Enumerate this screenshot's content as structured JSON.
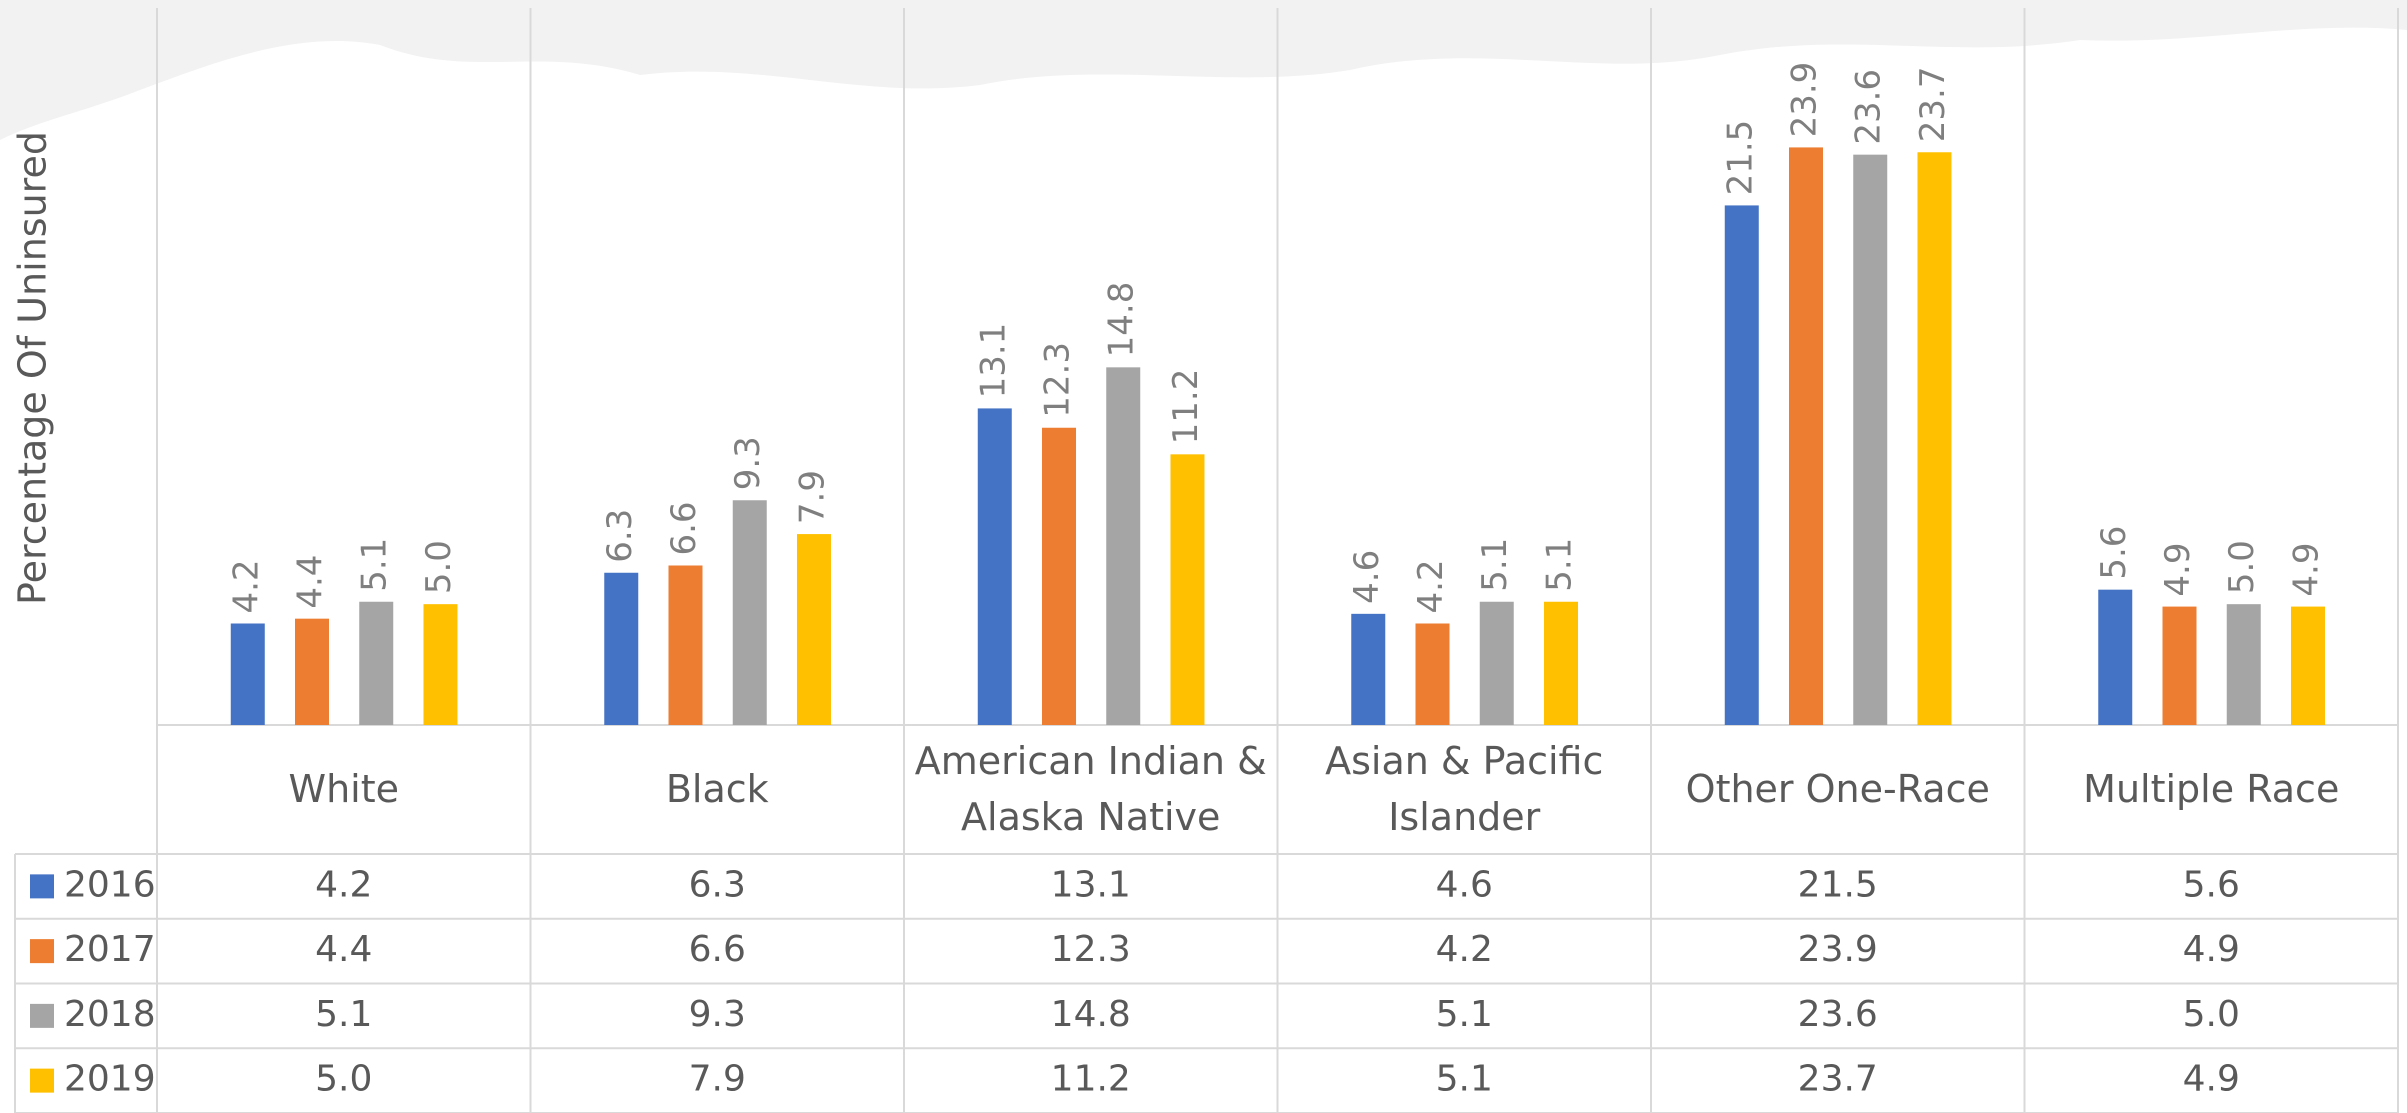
{
  "chart_data": {
    "type": "bar",
    "y_label": "Percentage Of Uninsured",
    "categories": [
      "White",
      "Black",
      "American Indian & Alaska Native",
      "Asian & Pacific Islander",
      "Other One-Race",
      "Multiple Race"
    ],
    "series": [
      {
        "name": "2016",
        "color": "#4472c4",
        "values": [
          4.2,
          6.3,
          13.1,
          4.6,
          21.5,
          5.6
        ],
        "value_labels": [
          "4.2",
          "6.3",
          "13.1",
          "4.6",
          "21.5",
          "5.6"
        ]
      },
      {
        "name": "2017",
        "color": "#ed7d31",
        "values": [
          4.4,
          6.6,
          12.3,
          4.2,
          23.9,
          4.9
        ],
        "value_labels": [
          "4.4",
          "6.6",
          "12.3",
          "4.2",
          "23.9",
          "4.9"
        ]
      },
      {
        "name": "2018",
        "color": "#a5a5a5",
        "values": [
          5.1,
          9.3,
          14.8,
          5.1,
          23.6,
          5
        ],
        "value_labels": [
          "5.1",
          "9.3",
          "14.8",
          "5.1",
          "23.6",
          "5.0"
        ]
      },
      {
        "name": "2019",
        "color": "#ffc000",
        "values": [
          5,
          7.9,
          11.2,
          5.1,
          23.7,
          4.9
        ],
        "value_labels": [
          "5.0",
          "7.9",
          "11.2",
          "5.1",
          "23.7",
          "4.9"
        ]
      }
    ],
    "ylim": [
      0,
      30
    ],
    "data_table": true
  }
}
